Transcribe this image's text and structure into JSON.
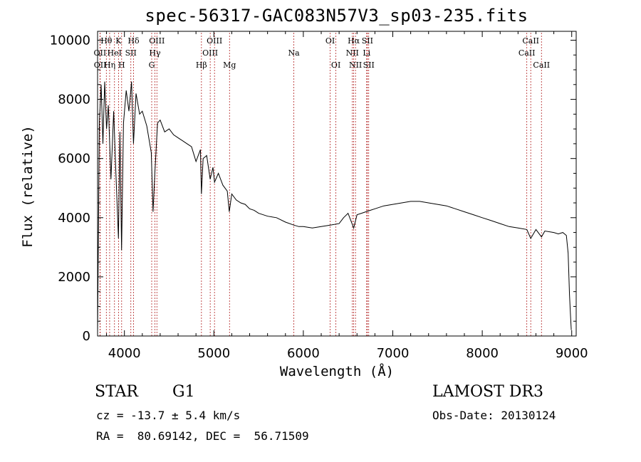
{
  "title": "spec-56317-GAC083N57V3_sp03-235.fits",
  "chart_data": {
    "type": "line",
    "title": "spec-56317-GAC083N57V3_sp03-235.fits",
    "xlabel": "Wavelength (Å)",
    "ylabel": "Flux (relative)",
    "xlim": [
      3700,
      9050
    ],
    "ylim": [
      0,
      10300
    ],
    "xticks": [
      4000,
      5000,
      6000,
      7000,
      8000,
      9000
    ],
    "yticks": [
      0,
      2000,
      4000,
      6000,
      8000,
      10000
    ],
    "x": [
      3700,
      3720,
      3740,
      3760,
      3780,
      3800,
      3820,
      3850,
      3880,
      3900,
      3933,
      3950,
      3968,
      3990,
      4020,
      4050,
      4080,
      4101,
      4130,
      4170,
      4200,
      4250,
      4300,
      4320,
      4340,
      4370,
      4400,
      4450,
      4500,
      4550,
      4600,
      4650,
      4700,
      4750,
      4800,
      4850,
      4861,
      4880,
      4920,
      4959,
      4990,
      5007,
      5050,
      5100,
      5150,
      5172,
      5200,
      5250,
      5300,
      5350,
      5400,
      5450,
      5500,
      5600,
      5700,
      5800,
      5893,
      5950,
      6000,
      6100,
      6200,
      6300,
      6400,
      6450,
      6500,
      6563,
      6600,
      6650,
      6700,
      6750,
      6800,
      6900,
      7000,
      7100,
      7200,
      7300,
      7400,
      7500,
      7600,
      7700,
      7800,
      7900,
      8000,
      8100,
      8200,
      8300,
      8400,
      8498,
      8542,
      8600,
      8662,
      8700,
      8800,
      8850,
      8900,
      8940,
      8960,
      8975,
      8985,
      8995
    ],
    "y": [
      100,
      7200,
      8500,
      6500,
      8600,
      7000,
      7800,
      5300,
      7600,
      5900,
      3300,
      6900,
      2900,
      7200,
      8300,
      7600,
      8600,
      6500,
      8200,
      7500,
      7600,
      7100,
      6200,
      4200,
      5500,
      7200,
      7300,
      6900,
      7000,
      6800,
      6700,
      6600,
      6500,
      6400,
      5900,
      6300,
      4800,
      6000,
      6100,
      5300,
      5700,
      5200,
      5500,
      5100,
      4900,
      4200,
      4800,
      4600,
      4500,
      4450,
      4300,
      4250,
      4150,
      4050,
      4000,
      3850,
      3750,
      3700,
      3700,
      3650,
      3700,
      3750,
      3800,
      4000,
      4150,
      3650,
      4100,
      4150,
      4200,
      4250,
      4300,
      4400,
      4450,
      4500,
      4550,
      4550,
      4500,
      4450,
      4400,
      4300,
      4200,
      4100,
      4000,
      3900,
      3800,
      3700,
      3650,
      3600,
      3300,
      3600,
      3350,
      3550,
      3500,
      3450,
      3500,
      3400,
      2800,
      1400,
      800,
      200
    ],
    "lines": [
      {
        "label": "OII",
        "wl": 3727,
        "row": 2
      },
      {
        "label": "OII",
        "wl": 3729,
        "row": 3
      },
      {
        "label": "Hθ",
        "wl": 3798,
        "row": 1
      },
      {
        "label": "Hη",
        "wl": 3835,
        "row": 3
      },
      {
        "label": "HeI",
        "wl": 3889,
        "row": 2
      },
      {
        "label": "K",
        "wl": 3934,
        "row": 1
      },
      {
        "label": "H",
        "wl": 3969,
        "row": 3
      },
      {
        "label": "SII",
        "wl": 4072,
        "row": 2
      },
      {
        "label": "Hδ",
        "wl": 4102,
        "row": 1
      },
      {
        "label": "G",
        "wl": 4305,
        "row": 3
      },
      {
        "label": "Hγ",
        "wl": 4341,
        "row": 2
      },
      {
        "label": "OIII",
        "wl": 4363,
        "row": 1
      },
      {
        "label": "Hβ",
        "wl": 4861,
        "row": 3
      },
      {
        "label": "OIII",
        "wl": 4959,
        "row": 2
      },
      {
        "label": "OIII",
        "wl": 5007,
        "row": 1
      },
      {
        "label": "Mg",
        "wl": 5175,
        "row": 3
      },
      {
        "label": "Na",
        "wl": 5894,
        "row": 2
      },
      {
        "label": "OI",
        "wl": 6300,
        "row": 1
      },
      {
        "label": "OI",
        "wl": 6364,
        "row": 3
      },
      {
        "label": "NII",
        "wl": 6548,
        "row": 2
      },
      {
        "label": "Hα",
        "wl": 6563,
        "row": 1
      },
      {
        "label": "NII",
        "wl": 6583,
        "row": 3
      },
      {
        "label": "Li",
        "wl": 6708,
        "row": 2
      },
      {
        "label": "SII",
        "wl": 6716,
        "row": 1
      },
      {
        "label": "SII",
        "wl": 6731,
        "row": 3
      },
      {
        "label": "CaII",
        "wl": 8498,
        "row": 2
      },
      {
        "label": "CaII",
        "wl": 8542,
        "row": 1
      },
      {
        "label": "CaII",
        "wl": 8662,
        "row": 3
      }
    ]
  },
  "info": {
    "object_class": "STAR",
    "subclass": "G1",
    "redshift": "cz = -13.7 ± 5.4 km/s",
    "coords": "RA =  80.69142, DEC =  56.71509",
    "survey": "LAMOST DR3",
    "obs_date": "Obs-Date: 20130124"
  },
  "colors": {
    "spectrum": "#000000",
    "line_marker": "#b22222",
    "text": "#000000"
  }
}
